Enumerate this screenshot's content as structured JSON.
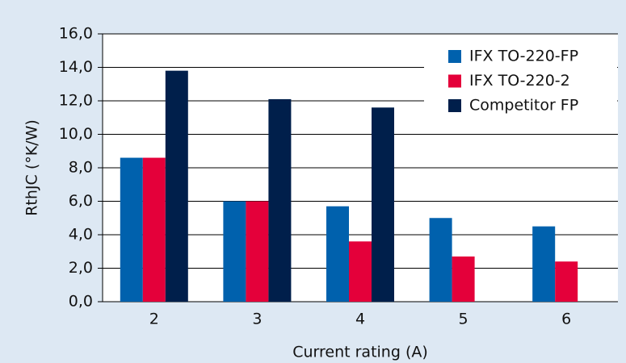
{
  "chart_data": {
    "type": "bar",
    "categories": [
      "2",
      "3",
      "4",
      "5",
      "6"
    ],
    "series": [
      {
        "name": "IFX TO-220-FP",
        "color": "#0061ad",
        "values": [
          8.6,
          6.0,
          5.7,
          5.0,
          4.5
        ]
      },
      {
        "name": "IFX TO-220-2",
        "color": "#e4003a",
        "values": [
          8.6,
          6.0,
          3.6,
          2.7,
          2.4
        ]
      },
      {
        "name": "Competitor FP",
        "color": "#001f4b",
        "values": [
          13.8,
          12.1,
          11.6,
          null,
          null
        ]
      }
    ],
    "xlabel": "Current rating (A)",
    "ylabel": "RthJC (°K/W)",
    "ylim": [
      0,
      16
    ],
    "yticks": [
      {
        "value": 0,
        "label": "0,0"
      },
      {
        "value": 2,
        "label": "2,0"
      },
      {
        "value": 4,
        "label": "4,0"
      },
      {
        "value": 6,
        "label": "6,0"
      },
      {
        "value": 8,
        "label": "8,0"
      },
      {
        "value": 10,
        "label": "10,0"
      },
      {
        "value": 12,
        "label": "12,0"
      },
      {
        "value": 14,
        "label": "14,0"
      },
      {
        "value": 16,
        "label": "16,0"
      }
    ],
    "grid": true,
    "legend": "upper right"
  }
}
